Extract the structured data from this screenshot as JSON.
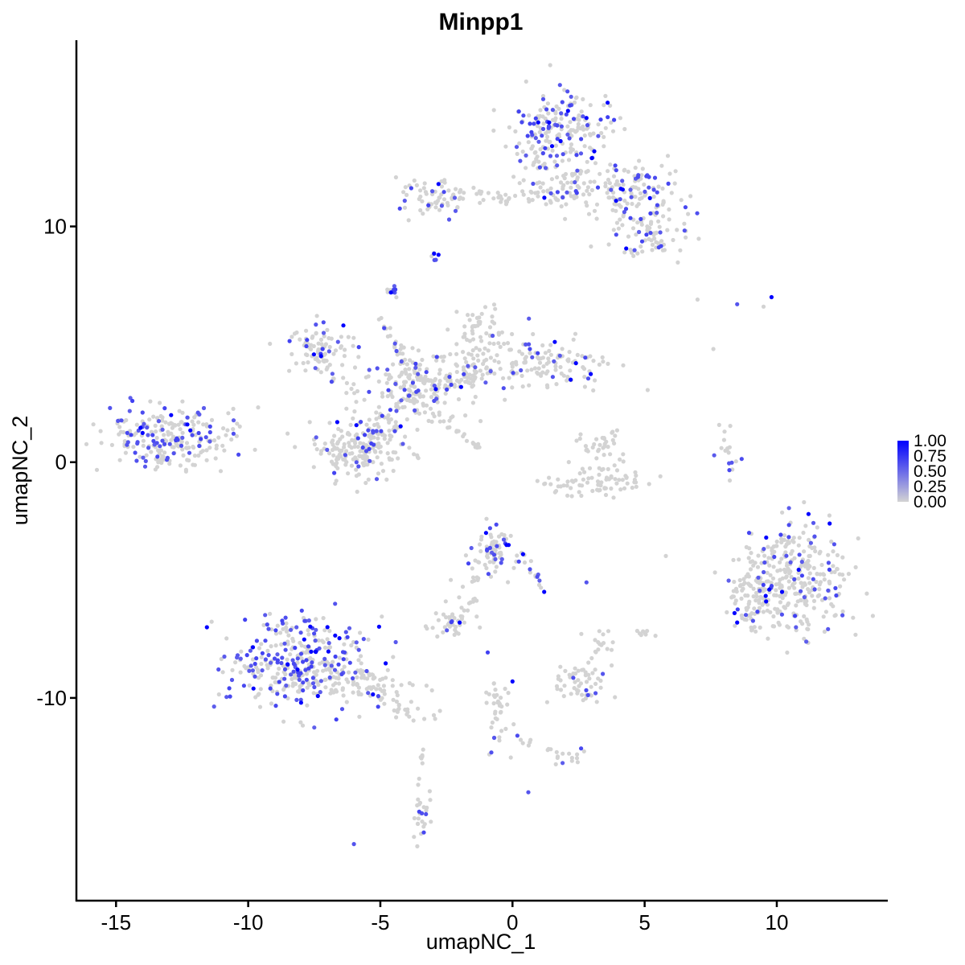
{
  "chart_data": {
    "type": "scatter",
    "title": "Minpp1",
    "xlabel": "umapNC_1",
    "ylabel": "umapNC_2",
    "xlim": [
      -16.5,
      14.2
    ],
    "ylim": [
      -18.6,
      17.9
    ],
    "x_ticks": [
      -15,
      -10,
      -5,
      0,
      5,
      10
    ],
    "y_ticks": [
      -10,
      0,
      10
    ],
    "x_tick_labels": [
      "-15",
      "-10",
      "-5",
      "0",
      "5",
      "10"
    ],
    "y_tick_labels": [
      "-10",
      "0",
      "10"
    ],
    "grid": false,
    "legend": {
      "position": "right",
      "type": "continuous-colorbar",
      "labels": [
        "1.00",
        "0.75",
        "0.50",
        "0.25",
        "0.00"
      ],
      "range": [
        0,
        1
      ],
      "color_low": "#d3d3d3",
      "color_high": "#0000ff"
    },
    "clusters": [
      {
        "cx": -13.0,
        "cy": 1.0,
        "sx": 1.2,
        "sy": 0.65,
        "n": 240,
        "expr_frac": 0.3
      },
      {
        "cx": -8.2,
        "cy": -8.6,
        "sx": 1.3,
        "sy": 1.0,
        "n": 340,
        "expr_frac": 0.38
      },
      {
        "cx": -5.4,
        "cy": -9.4,
        "sx": 0.9,
        "sy": 0.4,
        "n": 70,
        "expr_frac": 0.05
      },
      {
        "cx": -4.0,
        "cy": -10.4,
        "sx": 0.6,
        "sy": 0.3,
        "n": 25,
        "expr_frac": 0.08
      },
      {
        "cx": -5.8,
        "cy": 0.6,
        "sx": 0.9,
        "sy": 0.7,
        "n": 200,
        "expr_frac": 0.14
      },
      {
        "cx": -7.2,
        "cy": 4.8,
        "sx": 0.7,
        "sy": 0.5,
        "n": 80,
        "expr_frac": 0.12
      },
      {
        "cx": -3.6,
        "cy": 3.1,
        "sx": 1.0,
        "sy": 0.8,
        "n": 180,
        "expr_frac": 0.16
      },
      {
        "cx": -1.2,
        "cy": 5.0,
        "sx": 0.5,
        "sy": 0.9,
        "n": 80,
        "expr_frac": 0.1
      },
      {
        "cx": 1.3,
        "cy": 4.2,
        "sx": 1.2,
        "sy": 0.5,
        "n": 120,
        "expr_frac": 0.12
      },
      {
        "cx": -4.5,
        "cy": 7.2,
        "sx": 0.15,
        "sy": 0.2,
        "n": 12,
        "expr_frac": 0.6
      },
      {
        "cx": -3.0,
        "cy": 11.2,
        "sx": 0.7,
        "sy": 0.4,
        "n": 60,
        "expr_frac": 0.15
      },
      {
        "cx": -0.8,
        "cy": 11.3,
        "sx": 1.3,
        "sy": 0.2,
        "n": 40,
        "expr_frac": 0.08
      },
      {
        "cx": 1.8,
        "cy": 14.2,
        "sx": 0.9,
        "sy": 0.8,
        "n": 200,
        "expr_frac": 0.28
      },
      {
        "cx": 4.4,
        "cy": 11.5,
        "sx": 1.0,
        "sy": 0.6,
        "n": 130,
        "expr_frac": 0.25
      },
      {
        "cx": 2.0,
        "cy": 11.6,
        "sx": 0.8,
        "sy": 0.6,
        "n": 60,
        "expr_frac": 0.1
      },
      {
        "cx": 5.0,
        "cy": 9.6,
        "sx": 0.8,
        "sy": 0.5,
        "n": 70,
        "expr_frac": 0.18
      },
      {
        "cx": 3.2,
        "cy": 0.4,
        "sx": 0.5,
        "sy": 0.5,
        "n": 40,
        "expr_frac": 0.0
      },
      {
        "cx": 3.2,
        "cy": -0.9,
        "sx": 1.1,
        "sy": 0.25,
        "n": 70,
        "expr_frac": 0.0
      },
      {
        "cx": 10.6,
        "cy": -4.9,
        "sx": 1.0,
        "sy": 1.2,
        "n": 330,
        "expr_frac": 0.12
      },
      {
        "cx": 9.0,
        "cy": -5.9,
        "sx": 0.5,
        "sy": 0.8,
        "n": 60,
        "expr_frac": 0.08
      },
      {
        "cx": 8.1,
        "cy": 0.3,
        "sx": 0.2,
        "sy": 0.6,
        "n": 18,
        "expr_frac": 0.2
      },
      {
        "cx": -0.7,
        "cy": -3.8,
        "sx": 0.5,
        "sy": 0.5,
        "n": 70,
        "expr_frac": 0.22
      },
      {
        "cx": -1.8,
        "cy": -5.8,
        "sx": 0.3,
        "sy": 0.6,
        "n": 20,
        "expr_frac": 0.0
      },
      {
        "cx": -2.5,
        "cy": -6.9,
        "sx": 0.4,
        "sy": 0.25,
        "n": 30,
        "expr_frac": 0.12
      },
      {
        "cx": 2.5,
        "cy": -9.3,
        "sx": 0.5,
        "sy": 0.5,
        "n": 55,
        "expr_frac": 0.12
      },
      {
        "cx": 3.4,
        "cy": -7.6,
        "sx": 0.3,
        "sy": 0.3,
        "n": 10,
        "expr_frac": 0.0
      },
      {
        "cx": -0.6,
        "cy": -10.9,
        "sx": 0.3,
        "sy": 1.0,
        "n": 25,
        "expr_frac": 0.15
      },
      {
        "cx": 2.2,
        "cy": -12.5,
        "sx": 0.3,
        "sy": 0.2,
        "n": 12,
        "expr_frac": 0.1
      },
      {
        "cx": -3.4,
        "cy": -15.0,
        "sx": 0.2,
        "sy": 0.6,
        "n": 25,
        "expr_frac": 0.1
      },
      {
        "cx": 5.0,
        "cy": -7.2,
        "sx": 0.15,
        "sy": 0.2,
        "n": 8,
        "expr_frac": 0.0
      }
    ],
    "paths": [
      {
        "from": [
          -5.2,
          2.0
        ],
        "to": [
          -1.0,
          4.0
        ],
        "n": 60,
        "spread": 0.3,
        "expr_frac": 0.15
      },
      {
        "from": [
          -3.6,
          3.0
        ],
        "to": [
          -5.0,
          6.2
        ],
        "n": 30,
        "spread": 0.25,
        "expr_frac": 0.05
      },
      {
        "from": [
          -3.0,
          2.0
        ],
        "to": [
          -1.2,
          0.6
        ],
        "n": 20,
        "spread": 0.12,
        "expr_frac": 0.0
      },
      {
        "from": [
          -8.0,
          5.2
        ],
        "to": [
          -6.0,
          2.8
        ],
        "n": 20,
        "spread": 0.3,
        "expr_frac": 0.05
      },
      {
        "from": [
          0.2,
          12.0
        ],
        "to": [
          1.2,
          13.3
        ],
        "n": 10,
        "spread": 0.2,
        "expr_frac": 0.0
      },
      {
        "from": [
          -1.6,
          -5.2
        ],
        "to": [
          -0.6,
          -4.0
        ],
        "n": 10,
        "spread": 0.15,
        "expr_frac": 0.0
      },
      {
        "from": [
          -0.8,
          -9.2
        ],
        "to": [
          -0.4,
          -12.0
        ],
        "n": 15,
        "spread": 0.15,
        "expr_frac": 0.05
      },
      {
        "from": [
          0.0,
          -11.8
        ],
        "to": [
          2.0,
          -12.4
        ],
        "n": 10,
        "spread": 0.15,
        "expr_frac": 0.0
      },
      {
        "from": [
          0.5,
          -4.0
        ],
        "to": [
          1.1,
          -5.4
        ],
        "n": 12,
        "spread": 0.15,
        "expr_frac": 0.3
      },
      {
        "from": [
          3.4,
          -7.6
        ],
        "to": [
          2.7,
          -8.8
        ],
        "n": 8,
        "spread": 0.1,
        "expr_frac": 0.0
      },
      {
        "from": [
          -3.4,
          -12.0
        ],
        "to": [
          -3.6,
          -14.0
        ],
        "n": 8,
        "spread": 0.1,
        "expr_frac": 0.0
      },
      {
        "from": [
          -2.9,
          9.0
        ],
        "to": [
          -3.0,
          8.5
        ],
        "n": 5,
        "spread": 0.1,
        "expr_frac": 0.4
      }
    ],
    "points": [
      {
        "x": 7.0,
        "y": 6.9,
        "v": 0.0
      },
      {
        "x": 7.6,
        "y": 4.8,
        "v": 0.0
      },
      {
        "x": 8.5,
        "y": 6.7,
        "v": 0.6
      },
      {
        "x": 9.5,
        "y": 6.6,
        "v": 0.0
      },
      {
        "x": 9.8,
        "y": 7.0,
        "v": 1.0
      },
      {
        "x": -6.0,
        "y": -16.2,
        "v": 0.6
      },
      {
        "x": 0.6,
        "y": -14.0,
        "v": 0.6
      },
      {
        "x": 2.8,
        "y": -5.1,
        "v": 0.6
      },
      {
        "x": 1.2,
        "y": -5.5,
        "v": 1.0
      },
      {
        "x": 0.4,
        "y": -3.9,
        "v": 1.0
      },
      {
        "x": -1.0,
        "y": -3.0,
        "v": 1.0
      },
      {
        "x": -2.0,
        "y": -6.8,
        "v": 1.0
      },
      {
        "x": 8.4,
        "y": -6.4,
        "v": 1.0
      },
      {
        "x": 8.5,
        "y": -6.8,
        "v": 1.0
      },
      {
        "x": 11.2,
        "y": -2.2,
        "v": 1.0
      },
      {
        "x": 12.0,
        "y": -2.6,
        "v": 1.0
      },
      {
        "x": 9.6,
        "y": -3.2,
        "v": 1.0
      },
      {
        "x": 10.2,
        "y": -5.5,
        "v": 1.0
      },
      {
        "x": -9.8,
        "y": -9.6,
        "v": 1.0
      },
      {
        "x": -7.0,
        "y": -7.0,
        "v": 1.0
      },
      {
        "x": -8.0,
        "y": -10.2,
        "v": 1.0
      },
      {
        "x": -12.3,
        "y": 1.6,
        "v": 1.0
      },
      {
        "x": -2.8,
        "y": 8.8,
        "v": 1.0
      },
      {
        "x": -2.8,
        "y": 11.8,
        "v": 1.0
      },
      {
        "x": 2.1,
        "y": 14.9,
        "v": 1.0
      },
      {
        "x": 2.8,
        "y": 14.6,
        "v": 1.0
      },
      {
        "x": 3.0,
        "y": 12.9,
        "v": 1.0
      },
      {
        "x": 4.1,
        "y": 11.6,
        "v": 1.0
      },
      {
        "x": 5.2,
        "y": 11.2,
        "v": 1.0
      },
      {
        "x": 1.6,
        "y": 5.1,
        "v": 1.0
      },
      {
        "x": 2.4,
        "y": 4.2,
        "v": 1.0
      },
      {
        "x": 2.2,
        "y": 3.5,
        "v": 1.0
      },
      {
        "x": -4.6,
        "y": 7.2,
        "v": 1.0
      },
      {
        "x": -6.4,
        "y": 5.8,
        "v": 1.0
      },
      {
        "x": -2.9,
        "y": 3.1,
        "v": 1.0
      },
      {
        "x": 0.0,
        "y": -9.3,
        "v": 1.0
      }
    ]
  }
}
